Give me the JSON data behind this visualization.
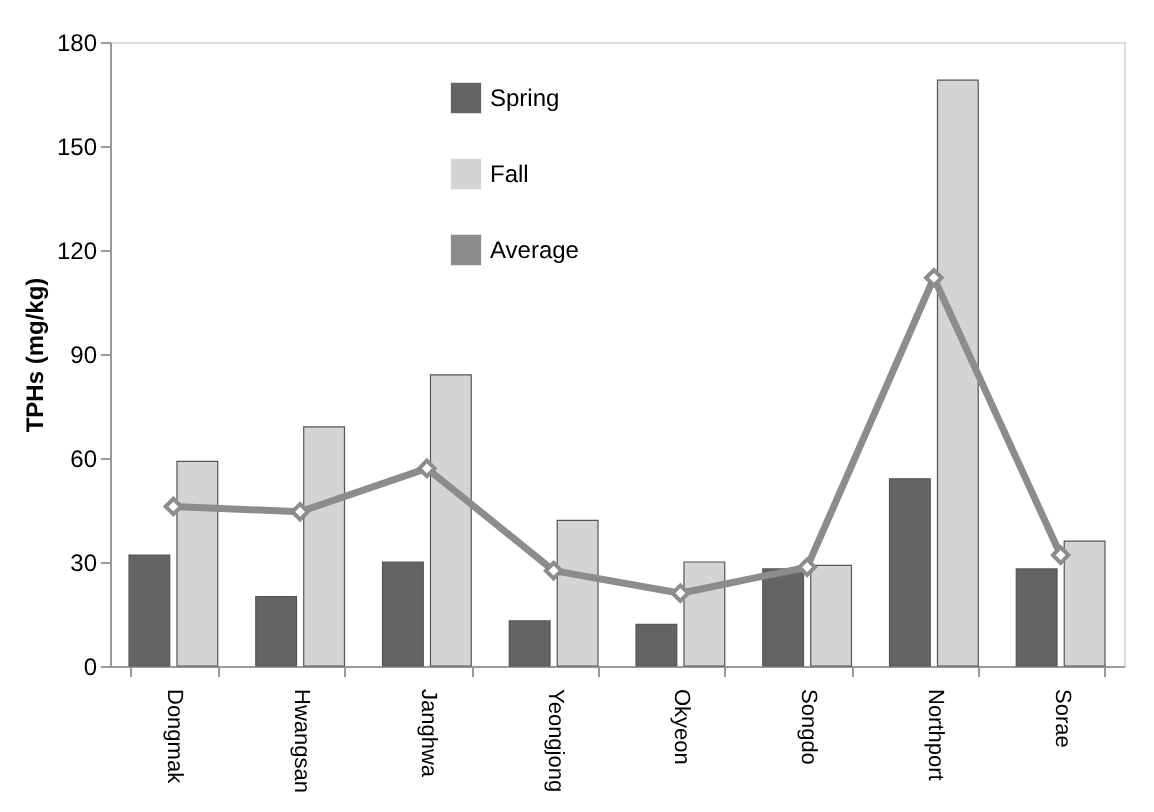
{
  "chart_data": {
    "type": "bar",
    "ylabel": "TPHs (mg/kg)",
    "categories": [
      "Dongmak",
      "Hwangsan",
      "Janghwa",
      "Yeongjong",
      "Okyeon",
      "Songdo",
      "Northport",
      "Sorae"
    ],
    "series": [
      {
        "name": "Spring",
        "color": "#646464",
        "values": [
          32,
          20,
          30,
          13,
          12,
          28,
          54,
          28
        ]
      },
      {
        "name": "Fall",
        "color": "#d4d4d4",
        "values": [
          59,
          69,
          84,
          42,
          30,
          29,
          169,
          36
        ]
      },
      {
        "name": "Average",
        "type": "line",
        "color": "#8c8c8c",
        "marker": "diamond",
        "values": [
          46,
          44.5,
          57,
          27.5,
          21,
          28.5,
          112,
          32
        ]
      }
    ],
    "ylim": [
      0,
      180
    ],
    "yticks": [
      0,
      30,
      60,
      90,
      120,
      150,
      180
    ],
    "grid": false,
    "legend": "top"
  }
}
